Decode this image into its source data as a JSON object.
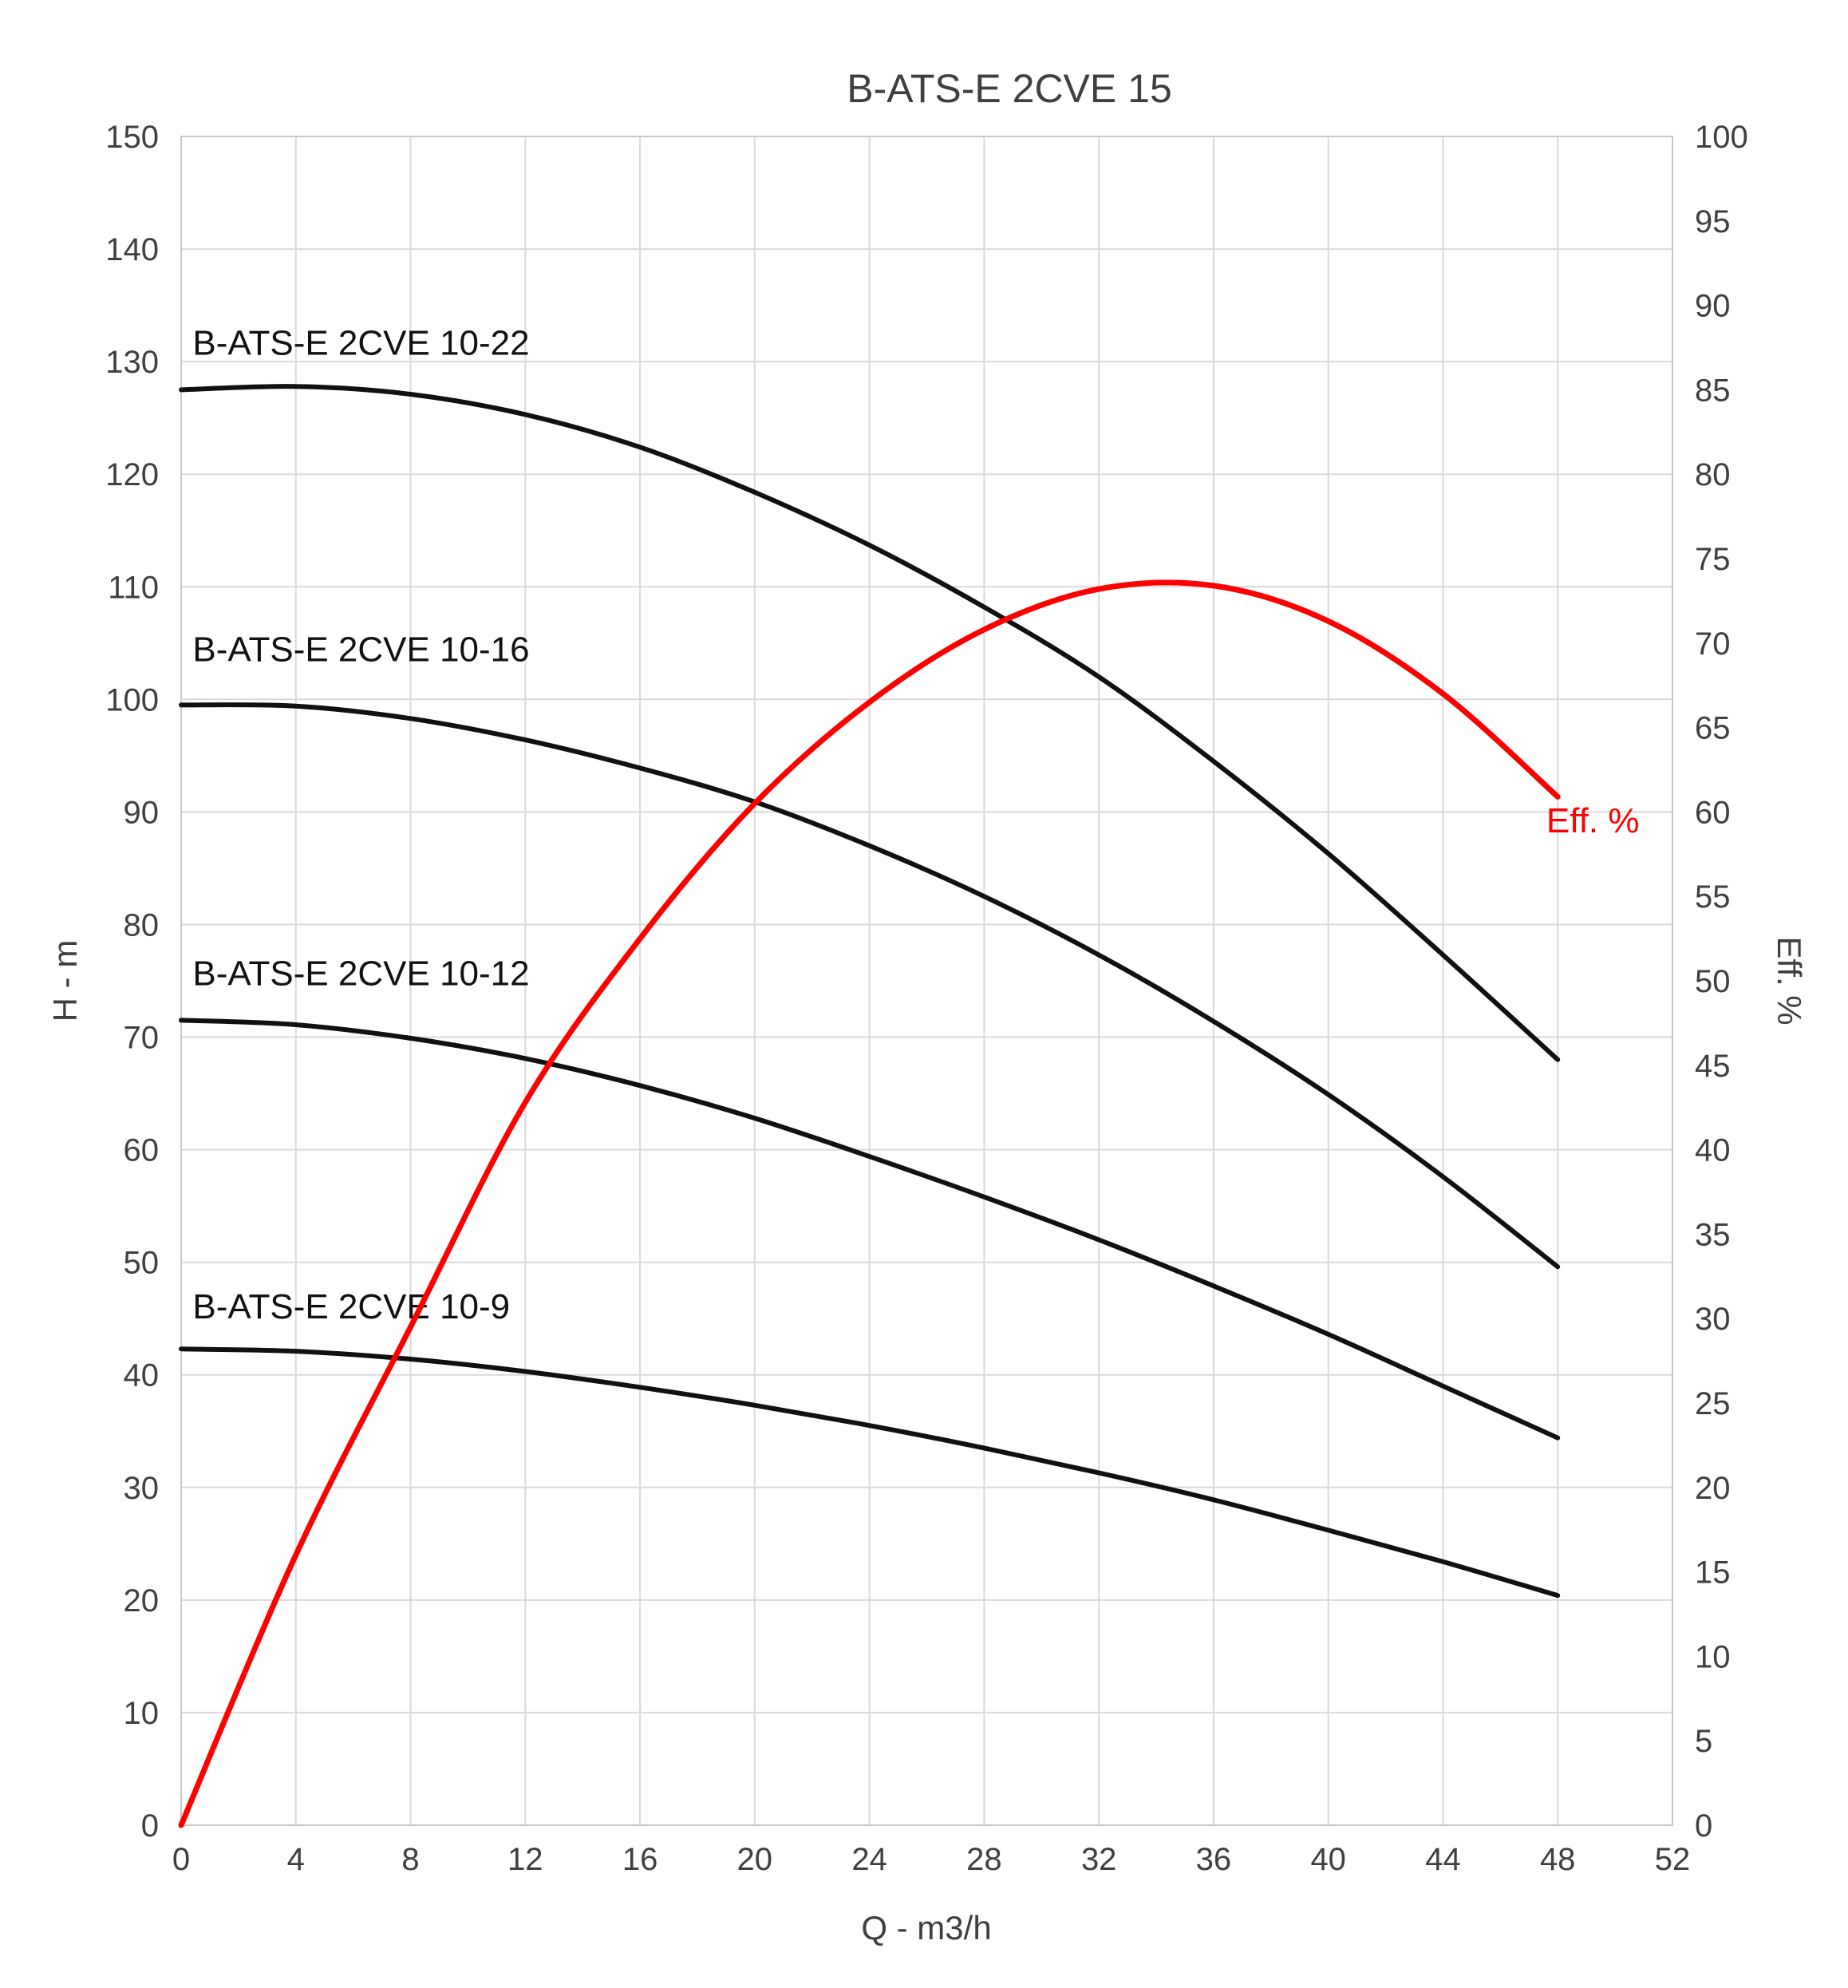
{
  "title": "B-ATS-E 2CVE 15",
  "chart_data": {
    "type": "line",
    "title": "B-ATS-E 2CVE 15",
    "xlabel": "Q - m3/h",
    "ylabel_left": "H - m",
    "ylabel_right": "Eff. %",
    "xlim": [
      0,
      52
    ],
    "xticks": [
      0,
      4,
      8,
      12,
      16,
      20,
      24,
      28,
      32,
      36,
      40,
      44,
      48,
      52
    ],
    "ylim_left": [
      0,
      150
    ],
    "yticks_left": [
      0,
      10,
      20,
      30,
      40,
      50,
      60,
      70,
      80,
      90,
      100,
      110,
      120,
      130,
      140,
      150
    ],
    "ylim_right": [
      0,
      100
    ],
    "yticks_right": [
      0,
      5,
      10,
      15,
      20,
      25,
      30,
      35,
      40,
      45,
      50,
      55,
      60,
      65,
      70,
      75,
      80,
      85,
      90,
      95,
      100
    ],
    "grid": true,
    "legend_position": "none",
    "series": [
      {
        "name": "B-ATS-E 2CVE 10-22",
        "axis": "left",
        "color": "#111111",
        "width": 6,
        "x": [
          0,
          4,
          8,
          12,
          16,
          20,
          24,
          28,
          32,
          36,
          40,
          44,
          48
        ],
        "y": [
          127.5,
          127.8,
          127.1,
          125.3,
          122.4,
          118.4,
          113.7,
          108.2,
          102.0,
          94.5,
          86.3,
          77.3,
          68.0
        ],
        "label": {
          "x": 0.4,
          "y": 130.6
        }
      },
      {
        "name": "B-ATS-E 2CVE 10-16",
        "axis": "left",
        "color": "#111111",
        "width": 6,
        "x": [
          0,
          4,
          8,
          12,
          16,
          20,
          24,
          28,
          32,
          36,
          40,
          44,
          48
        ],
        "y": [
          99.5,
          99.4,
          98.3,
          96.4,
          93.9,
          90.9,
          87.0,
          82.5,
          77.3,
          71.4,
          64.9,
          57.6,
          49.6
        ],
        "label": {
          "x": 0.4,
          "y": 103.4
        }
      },
      {
        "name": "B-ATS-E 2CVE 10-12",
        "axis": "left",
        "color": "#111111",
        "width": 6,
        "x": [
          0,
          4,
          8,
          12,
          16,
          20,
          24,
          28,
          32,
          36,
          40,
          44,
          48
        ],
        "y": [
          71.5,
          71.1,
          69.9,
          68.1,
          65.7,
          62.8,
          59.4,
          55.8,
          52.0,
          47.9,
          43.6,
          39.0,
          34.4
        ],
        "label": {
          "x": 0.4,
          "y": 74.6
        }
      },
      {
        "name": "B-ATS-E 2CVE 10-9",
        "axis": "left",
        "color": "#111111",
        "width": 6,
        "x": [
          0,
          4,
          8,
          12,
          16,
          20,
          24,
          28,
          32,
          36,
          40,
          44,
          48
        ],
        "y": [
          42.3,
          42.1,
          41.4,
          40.3,
          38.9,
          37.3,
          35.5,
          33.5,
          31.3,
          28.9,
          26.2,
          23.4,
          20.4
        ],
        "label": {
          "x": 0.4,
          "y": 45.0
        }
      },
      {
        "name": "Eff. %",
        "axis": "right",
        "color": "#fe0000",
        "width": 7,
        "x": [
          0,
          4,
          8,
          12,
          16,
          20,
          24,
          28,
          32,
          36,
          40,
          44,
          48
        ],
        "y": [
          0,
          16.0,
          29.5,
          42.8,
          52.5,
          60.5,
          66.5,
          70.8,
          73.2,
          73.4,
          71.3,
          67.0,
          60.9
        ],
        "label": {
          "x": 47.6,
          "y": 58.8
        }
      }
    ]
  }
}
